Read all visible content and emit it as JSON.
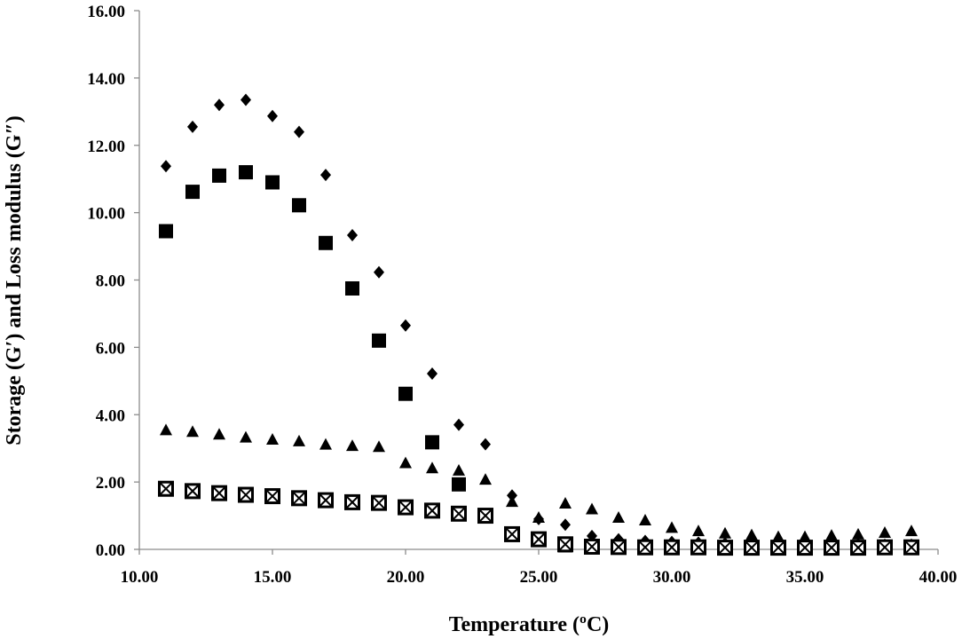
{
  "chart_data": {
    "type": "scatter",
    "title": "",
    "xlabel": "Temperature (ºC)",
    "ylabel": "Storage (G′) and Loss modulus (G″)",
    "xlim": [
      10,
      40
    ],
    "ylim": [
      0,
      16
    ],
    "x_ticks": [
      "10.00",
      "15.00",
      "20.00",
      "25.00",
      "30.00",
      "35.00",
      "40.00"
    ],
    "y_ticks": [
      "0.00",
      "2.00",
      "4.00",
      "6.00",
      "8.00",
      "10.00",
      "12.00",
      "14.00",
      "16.00"
    ],
    "grid": false,
    "legend": "none",
    "series": [
      {
        "marker": "diamond",
        "color": "#000000",
        "x": [
          11,
          12,
          13,
          14,
          15,
          16,
          17,
          18,
          19,
          20,
          21,
          22,
          23,
          24,
          25,
          26,
          27,
          28,
          29,
          30,
          31,
          32,
          33,
          34,
          35,
          36,
          37,
          38,
          39
        ],
        "y": [
          11.38,
          12.55,
          13.2,
          13.35,
          12.87,
          12.4,
          11.12,
          9.33,
          8.23,
          6.65,
          5.22,
          3.7,
          3.12,
          1.6,
          0.9,
          0.73,
          0.4,
          0.3,
          0.25,
          0.22,
          0.2,
          0.18,
          0.17,
          0.16,
          0.15,
          0.15,
          0.15,
          0.14,
          0.14
        ]
      },
      {
        "marker": "square",
        "color": "#000000",
        "x": [
          11,
          12,
          13,
          14,
          15,
          16,
          17,
          18,
          19,
          20,
          21,
          22,
          23,
          24,
          25,
          26,
          27,
          28,
          29,
          30,
          31,
          32,
          33,
          34,
          35,
          36,
          37,
          38,
          39
        ],
        "y": [
          9.45,
          10.62,
          11.1,
          11.2,
          10.9,
          10.22,
          9.1,
          7.75,
          6.2,
          4.62,
          3.18,
          1.93,
          1.0,
          0.47,
          0.28,
          0.12,
          0.1,
          0.08,
          0.07,
          0.06,
          0.06,
          0.05,
          0.05,
          0.05,
          0.04,
          0.04,
          0.04,
          0.04,
          0.04
        ]
      },
      {
        "marker": "triangle",
        "color": "#000000",
        "x": [
          11,
          12,
          13,
          14,
          15,
          16,
          17,
          18,
          19,
          20,
          21,
          22,
          23,
          24,
          25,
          26,
          27,
          28,
          29,
          30,
          31,
          32,
          33,
          34,
          35,
          36,
          37,
          38,
          39
        ],
        "y": [
          3.55,
          3.5,
          3.42,
          3.33,
          3.27,
          3.22,
          3.12,
          3.08,
          3.05,
          2.57,
          2.42,
          2.35,
          2.08,
          1.42,
          0.95,
          1.37,
          1.2,
          0.95,
          0.87,
          0.65,
          0.55,
          0.48,
          0.43,
          0.38,
          0.38,
          0.42,
          0.45,
          0.5,
          0.55
        ]
      },
      {
        "marker": "boxed-x",
        "color": "#000000",
        "x": [
          11,
          12,
          13,
          14,
          15,
          16,
          17,
          18,
          19,
          20,
          21,
          22,
          23,
          24,
          25,
          26,
          27,
          28,
          29,
          30,
          31,
          32,
          33,
          34,
          35,
          36,
          37,
          38,
          39
        ],
        "y": [
          1.8,
          1.73,
          1.67,
          1.62,
          1.58,
          1.52,
          1.46,
          1.4,
          1.38,
          1.25,
          1.15,
          1.06,
          1.0,
          0.45,
          0.3,
          0.15,
          0.08,
          0.07,
          0.06,
          0.06,
          0.06,
          0.05,
          0.05,
          0.05,
          0.05,
          0.05,
          0.05,
          0.06,
          0.06
        ]
      }
    ]
  }
}
